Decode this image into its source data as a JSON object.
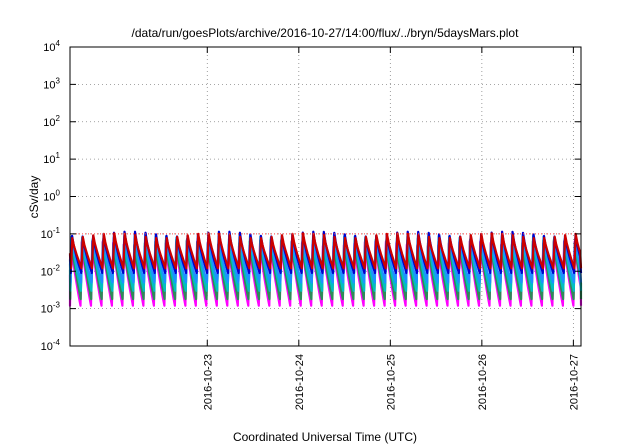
{
  "chart_data": {
    "type": "line",
    "title": "/data/run/goesPlots/archive/2016-10-27/14:00/flux/../bryn/5daysMars.plot",
    "xlabel": "Coordinated Universal Time (UTC)",
    "ylabel": "cSv/day",
    "y_scale": "log",
    "ylim": [
      0.0001,
      10000
    ],
    "y_ticks": [
      {
        "base": "10",
        "exp": "-4"
      },
      {
        "base": "10",
        "exp": "-3"
      },
      {
        "base": "10",
        "exp": "-2"
      },
      {
        "base": "10",
        "exp": "-1"
      },
      {
        "base": "10",
        "exp": "0"
      },
      {
        "base": "10",
        "exp": "1"
      },
      {
        "base": "10",
        "exp": "2"
      },
      {
        "base": "10",
        "exp": "3"
      },
      {
        "base": "10",
        "exp": "4"
      }
    ],
    "x_ticks": [
      "2016-10-23",
      "2016-10-24",
      "2016-10-25",
      "2016-10-26",
      "2016-10-27"
    ],
    "x_range": [
      "2016-10-22T00:00",
      "2016-10-27T14:00"
    ],
    "threshold": 0.1,
    "grid": true,
    "period_hours": 2.75,
    "series": [
      {
        "color": "#ff00ff",
        "peak": 0.055,
        "trough": 0.0012
      },
      {
        "color": "#2e8b57",
        "peak": 0.06,
        "trough": 0.0018
      },
      {
        "color": "#00c0c0",
        "peak": 0.075,
        "trough": 0.003
      },
      {
        "color": "#1e90ff",
        "peak": 0.085,
        "trough": 0.005
      },
      {
        "color": "#0000cd",
        "peak": 0.1,
        "trough": 0.009
      },
      {
        "color": "#cc0000",
        "peak": 0.09,
        "trough": 0.012
      }
    ],
    "colors": {
      "threshold": "#ff4444",
      "grid": "#888888",
      "frame": "#000000"
    }
  }
}
